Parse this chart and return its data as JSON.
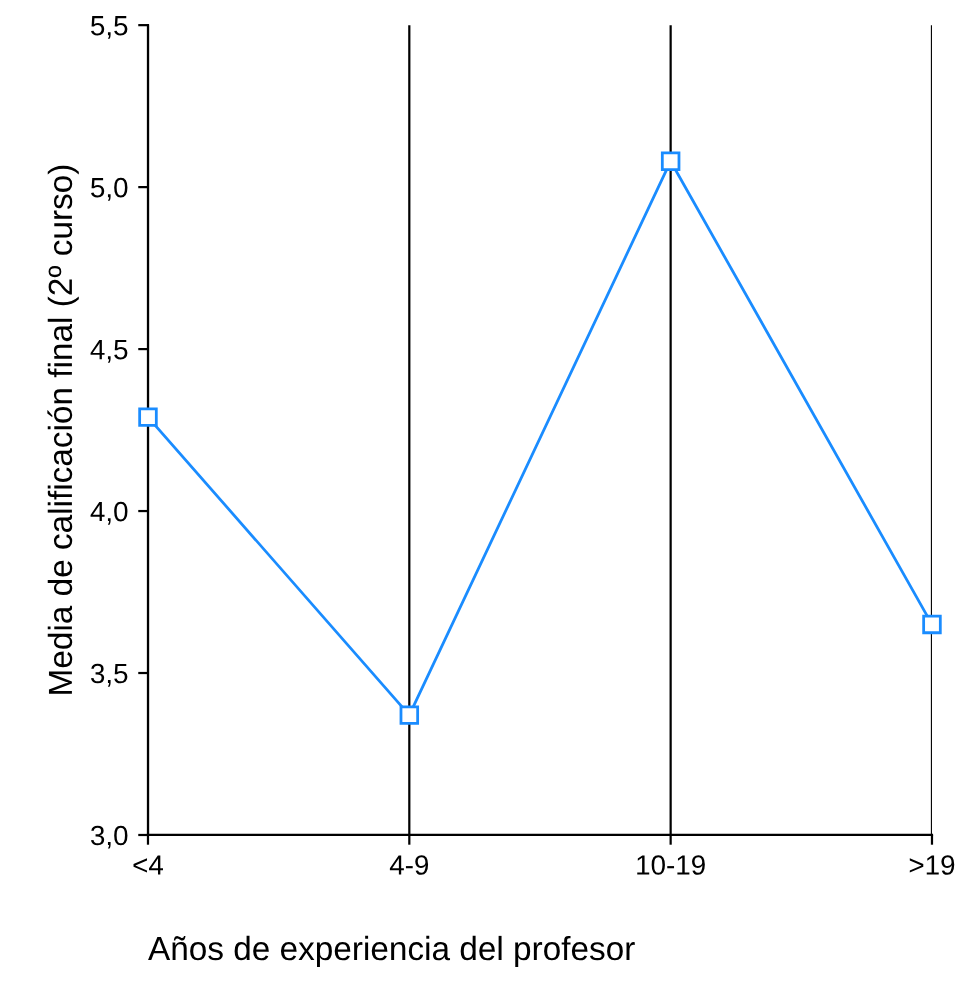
{
  "chart_data": {
    "type": "line",
    "xlabel": "Años de experiencia del profesor",
    "ylabel": "Media de calificación final (2º curso)",
    "categories": [
      "<4",
      "4-9",
      "10-19",
      ">19"
    ],
    "series": [
      {
        "color": "#1a8cff",
        "values": [
          4.29,
          3.37,
          5.08,
          3.65
        ]
      }
    ],
    "ylim": [
      3.0,
      5.5
    ],
    "yticks": [
      {
        "value": 3.0,
        "label": "3,0"
      },
      {
        "value": 3.5,
        "label": "3,5"
      },
      {
        "value": 4.0,
        "label": "4,0"
      },
      {
        "value": 4.5,
        "label": "4,5"
      },
      {
        "value": 5.0,
        "label": "5,0"
      },
      {
        "value": 5.5,
        "label": "5,5"
      }
    ],
    "grid": "x",
    "marker": "square",
    "line_style": "solid",
    "legend": false
  }
}
